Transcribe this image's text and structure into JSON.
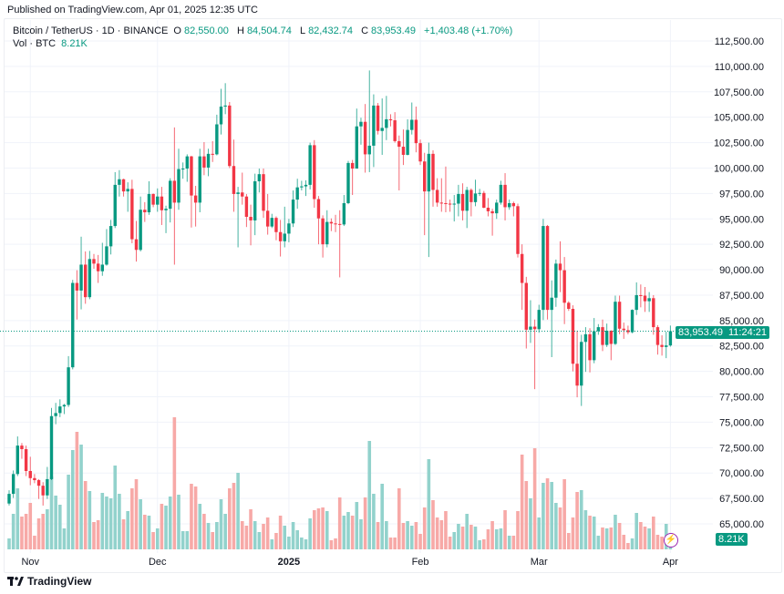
{
  "published": "Published on TradingView.com, Apr 01, 2025 12:35 UTC",
  "legend": {
    "symbol": "Bitcoin / TetherUS · 1D · BINANCE",
    "o_label": "O",
    "o": "82,550.00",
    "h_label": "H",
    "h": "84,504.74",
    "l_label": "L",
    "l": "82,432.74",
    "c_label": "C",
    "c": "83,953.49",
    "change": "+1,403.48 (+1.70%)",
    "vol_label": "Vol · BTC",
    "vol": "8.21K"
  },
  "price_tag": {
    "price": "83,953.49",
    "countdown": "11:24:21"
  },
  "vol_tag": "8.21K",
  "logo_text": "TradingView",
  "colors": {
    "up": "#089981",
    "down": "#F23645",
    "up_vol": "#92d2cc",
    "down_vol": "#f7a9a7",
    "grid": "#f0f3fa",
    "accent_icon": "#9c27b0"
  },
  "chart_data": {
    "type": "candlestick",
    "title": "",
    "xlabel": "",
    "ylabel": "",
    "ylim": [
      63000,
      113500
    ],
    "y_ticks": [
      "112,500.00",
      "110,000.00",
      "107,500.00",
      "105,000.00",
      "102,500.00",
      "100,000.00",
      "97,500.00",
      "95,000.00",
      "92,500.00",
      "90,000.00",
      "87,500.00",
      "85,000.00",
      "82,500.00",
      "80,000.00",
      "77,500.00",
      "75,000.00",
      "72,500.00",
      "70,000.00",
      "67,500.00",
      "65,000.00"
    ],
    "x_ticks": [
      {
        "label": "Nov",
        "date": "2024-11-01",
        "bold": false
      },
      {
        "label": "Dec",
        "date": "2024-12-01",
        "bold": false
      },
      {
        "label": "2025",
        "date": "2025-01-01",
        "bold": true
      },
      {
        "label": "Feb",
        "date": "2025-02-01",
        "bold": false
      },
      {
        "label": "Mar",
        "date": "2025-03-01",
        "bold": false
      },
      {
        "label": "Apr",
        "date": "2025-04-01",
        "bold": false
      }
    ],
    "grid": true,
    "columns": [
      "date",
      "open",
      "high",
      "low",
      "close",
      "volume_k"
    ],
    "rows": [
      [
        "2024-10-27",
        67000,
        68300,
        66800,
        67950,
        7.2
      ],
      [
        "2024-10-28",
        67950,
        70250,
        67550,
        69900,
        23.4
      ],
      [
        "2024-10-29",
        69900,
        73600,
        69700,
        72700,
        40.2
      ],
      [
        "2024-10-30",
        72700,
        72950,
        71400,
        72350,
        21.6
      ],
      [
        "2024-10-31",
        72350,
        72700,
        69700,
        70200,
        23.4
      ],
      [
        "2024-11-01",
        70200,
        71600,
        68800,
        69500,
        30.6
      ],
      [
        "2024-11-02",
        69500,
        69900,
        69000,
        69300,
        9.0
      ],
      [
        "2024-11-03",
        69300,
        69400,
        67450,
        68750,
        20.4
      ],
      [
        "2024-11-04",
        68750,
        69100,
        66800,
        67800,
        23.4
      ],
      [
        "2024-11-05",
        67800,
        70600,
        67450,
        69400,
        26.4
      ],
      [
        "2024-11-06",
        69400,
        76400,
        69300,
        75600,
        48.0
      ],
      [
        "2024-11-07",
        75600,
        76900,
        74800,
        75900,
        35.4
      ],
      [
        "2024-11-08",
        75900,
        77250,
        75500,
        76550,
        29.4
      ],
      [
        "2024-11-09",
        76550,
        76800,
        75800,
        76700,
        13.8
      ],
      [
        "2024-11-10",
        76700,
        81500,
        76500,
        80400,
        49.2
      ],
      [
        "2024-11-11",
        80400,
        89000,
        80200,
        88700,
        65.4
      ],
      [
        "2024-11-12",
        88700,
        89950,
        85100,
        87950,
        77.4
      ],
      [
        "2024-11-13",
        87950,
        93250,
        86100,
        90500,
        69.0
      ],
      [
        "2024-11-14",
        90500,
        91800,
        86650,
        87300,
        45.0
      ],
      [
        "2024-11-15",
        87300,
        91850,
        87100,
        91050,
        38.4
      ],
      [
        "2024-11-16",
        91050,
        91550,
        90100,
        90600,
        18.0
      ],
      [
        "2024-11-17",
        90600,
        91450,
        88700,
        89850,
        19.2
      ],
      [
        "2024-11-18",
        89850,
        92650,
        89400,
        90500,
        37.2
      ],
      [
        "2024-11-19",
        90500,
        94000,
        90400,
        92300,
        34.8
      ],
      [
        "2024-11-20",
        92300,
        94900,
        91500,
        94300,
        33.6
      ],
      [
        "2024-11-21",
        94300,
        99600,
        94100,
        98350,
        55.2
      ],
      [
        "2024-11-22",
        98350,
        99800,
        97200,
        98900,
        36.6
      ],
      [
        "2024-11-23",
        98900,
        98950,
        97200,
        97700,
        19.8
      ],
      [
        "2024-11-24",
        97700,
        98600,
        95700,
        97950,
        25.2
      ],
      [
        "2024-11-25",
        97950,
        98850,
        92600,
        93000,
        40.2
      ],
      [
        "2024-11-26",
        93000,
        94800,
        90800,
        91950,
        46.2
      ],
      [
        "2024-11-27",
        91950,
        97200,
        91800,
        95900,
        33.0
      ],
      [
        "2024-11-28",
        95900,
        96650,
        94700,
        95650,
        22.8
      ],
      [
        "2024-11-29",
        95650,
        98700,
        95400,
        97450,
        22.2
      ],
      [
        "2024-11-30",
        97450,
        97500,
        96150,
        96400,
        11.4
      ],
      [
        "2024-12-01",
        96400,
        98000,
        95700,
        97200,
        13.8
      ],
      [
        "2024-12-02",
        97200,
        98150,
        94400,
        95850,
        30.0
      ],
      [
        "2024-12-03",
        95850,
        96300,
        93600,
        96000,
        28.8
      ],
      [
        "2024-12-04",
        96000,
        99000,
        94650,
        98750,
        34.8
      ],
      [
        "2024-12-05",
        98750,
        104000,
        90500,
        96600,
        87.0
      ],
      [
        "2024-12-06",
        96600,
        101900,
        95900,
        99900,
        36.0
      ],
      [
        "2024-12-07",
        99900,
        100550,
        98950,
        99950,
        12.0
      ],
      [
        "2024-12-08",
        99950,
        101350,
        98650,
        101150,
        12.0
      ],
      [
        "2024-12-09",
        101150,
        101200,
        94150,
        97300,
        43.2
      ],
      [
        "2024-12-10",
        97300,
        98250,
        94250,
        96600,
        41.4
      ],
      [
        "2024-12-11",
        96600,
        101900,
        95650,
        101150,
        30.0
      ],
      [
        "2024-12-12",
        101150,
        102550,
        99300,
        100050,
        23.4
      ],
      [
        "2024-12-13",
        100050,
        101900,
        99200,
        101400,
        17.4
      ],
      [
        "2024-12-14",
        101400,
        102650,
        100600,
        101350,
        11.4
      ],
      [
        "2024-12-15",
        101350,
        105250,
        101250,
        104300,
        18.0
      ],
      [
        "2024-12-16",
        104300,
        107800,
        103300,
        106050,
        33.0
      ],
      [
        "2024-12-17",
        106050,
        108350,
        105300,
        106150,
        23.4
      ],
      [
        "2024-12-18",
        106150,
        106500,
        100000,
        100200,
        40.2
      ],
      [
        "2024-12-19",
        100200,
        102800,
        95700,
        97450,
        43.8
      ],
      [
        "2024-12-20",
        97450,
        98150,
        92200,
        97600,
        50.4
      ],
      [
        "2024-12-21",
        97600,
        99550,
        96400,
        97200,
        18.6
      ],
      [
        "2024-12-22",
        97200,
        97450,
        94200,
        95200,
        15.6
      ],
      [
        "2024-12-23",
        95200,
        96400,
        92400,
        94850,
        26.4
      ],
      [
        "2024-12-24",
        94850,
        99450,
        93400,
        98700,
        18.6
      ],
      [
        "2024-12-25",
        98700,
        99950,
        97600,
        99400,
        11.4
      ],
      [
        "2024-12-26",
        99400,
        99950,
        95100,
        95800,
        16.8
      ],
      [
        "2024-12-27",
        95800,
        97450,
        93450,
        94250,
        21.0
      ],
      [
        "2024-12-28",
        94250,
        95500,
        94100,
        95100,
        6.6
      ],
      [
        "2024-12-29",
        95100,
        95250,
        92900,
        93700,
        10.8
      ],
      [
        "2024-12-30",
        93700,
        94900,
        91300,
        92800,
        22.2
      ],
      [
        "2024-12-31",
        92800,
        96200,
        92200,
        93550,
        15.6
      ],
      [
        "2025-01-01",
        93550,
        95000,
        92700,
        94550,
        8.4
      ],
      [
        "2025-01-02",
        94550,
        97800,
        94200,
        96900,
        18.0
      ],
      [
        "2025-01-03",
        96900,
        98950,
        96000,
        98100,
        12.6
      ],
      [
        "2025-01-04",
        98100,
        98750,
        97800,
        98200,
        7.8
      ],
      [
        "2025-01-05",
        98200,
        98800,
        97250,
        98350,
        6.6
      ],
      [
        "2025-01-06",
        98350,
        102500,
        97900,
        102250,
        20.4
      ],
      [
        "2025-01-07",
        102250,
        102750,
        96100,
        96950,
        25.8
      ],
      [
        "2025-01-08",
        96950,
        97250,
        92500,
        95050,
        27.0
      ],
      [
        "2025-01-09",
        95050,
        95350,
        91200,
        92500,
        27.6
      ],
      [
        "2025-01-10",
        92500,
        95850,
        92200,
        94700,
        25.2
      ],
      [
        "2025-01-11",
        94700,
        95050,
        93800,
        94550,
        6.0
      ],
      [
        "2025-01-12",
        94550,
        95400,
        93700,
        94500,
        7.2
      ],
      [
        "2025-01-13",
        94500,
        95850,
        89250,
        94450,
        34.2
      ],
      [
        "2025-01-14",
        94450,
        97350,
        94300,
        96550,
        22.2
      ],
      [
        "2025-01-15",
        96550,
        100700,
        96450,
        100500,
        24.6
      ],
      [
        "2025-01-16",
        100500,
        100800,
        97350,
        99950,
        22.2
      ],
      [
        "2025-01-17",
        99950,
        105850,
        99950,
        104100,
        31.2
      ],
      [
        "2025-01-18",
        104100,
        104950,
        102300,
        104550,
        19.8
      ],
      [
        "2025-01-19",
        104550,
        106300,
        99550,
        101350,
        34.2
      ],
      [
        "2025-01-20",
        101350,
        109600,
        99600,
        102200,
        71.4
      ],
      [
        "2025-01-21",
        102200,
        107250,
        100100,
        106150,
        36.6
      ],
      [
        "2025-01-22",
        106150,
        106400,
        103300,
        103650,
        18.0
      ],
      [
        "2025-01-23",
        103650,
        106850,
        101300,
        103950,
        43.2
      ],
      [
        "2025-01-24",
        103950,
        107100,
        102750,
        104800,
        18.6
      ],
      [
        "2025-01-25",
        104800,
        105300,
        104100,
        104700,
        7.8
      ],
      [
        "2025-01-26",
        104700,
        105500,
        102500,
        102650,
        7.8
      ],
      [
        "2025-01-27",
        102650,
        103200,
        97800,
        102100,
        40.2
      ],
      [
        "2025-01-28",
        102100,
        103800,
        100300,
        101300,
        17.4
      ],
      [
        "2025-01-29",
        101300,
        104800,
        101250,
        103750,
        18.6
      ],
      [
        "2025-01-30",
        103750,
        106450,
        103300,
        104750,
        15.6
      ],
      [
        "2025-01-31",
        104750,
        106050,
        101550,
        102450,
        18.0
      ],
      [
        "2025-02-01",
        102450,
        102800,
        100300,
        100650,
        10.2
      ],
      [
        "2025-02-02",
        100650,
        101500,
        93400,
        97700,
        27.6
      ],
      [
        "2025-02-03",
        97700,
        102500,
        91250,
        101400,
        59.4
      ],
      [
        "2025-02-04",
        101400,
        101750,
        96200,
        97850,
        32.4
      ],
      [
        "2025-02-05",
        97850,
        99000,
        96200,
        96600,
        21.0
      ],
      [
        "2025-02-06",
        96600,
        99000,
        95700,
        96550,
        19.2
      ],
      [
        "2025-02-07",
        96550,
        100150,
        95650,
        96500,
        25.2
      ],
      [
        "2025-02-08",
        96500,
        96900,
        95700,
        96450,
        8.4
      ],
      [
        "2025-02-09",
        96450,
        97350,
        94750,
        96500,
        11.4
      ],
      [
        "2025-02-10",
        96500,
        98350,
        95250,
        97450,
        16.8
      ],
      [
        "2025-02-11",
        97450,
        98500,
        94850,
        95800,
        15.0
      ],
      [
        "2025-02-12",
        95800,
        98150,
        94100,
        97850,
        23.4
      ],
      [
        "2025-02-13",
        97850,
        98000,
        95250,
        96650,
        16.2
      ],
      [
        "2025-02-14",
        96650,
        98850,
        96250,
        97500,
        15.0
      ],
      [
        "2025-02-15",
        97500,
        97950,
        97250,
        97550,
        6.0
      ],
      [
        "2025-02-16",
        97550,
        97750,
        96050,
        96100,
        6.6
      ],
      [
        "2025-02-17",
        96100,
        97050,
        95250,
        95750,
        13.2
      ],
      [
        "2025-02-18",
        95750,
        96000,
        93350,
        95550,
        18.6
      ],
      [
        "2025-02-19",
        95550,
        96900,
        95000,
        96600,
        13.2
      ],
      [
        "2025-02-20",
        96600,
        98750,
        96400,
        98350,
        13.8
      ],
      [
        "2025-02-21",
        98350,
        99500,
        94850,
        96150,
        25.8
      ],
      [
        "2025-02-22",
        96150,
        96900,
        95900,
        96550,
        9.0
      ],
      [
        "2025-02-23",
        96550,
        96700,
        95250,
        96250,
        9.0
      ],
      [
        "2025-02-24",
        96250,
        96500,
        91200,
        91550,
        25.2
      ],
      [
        "2025-02-25",
        91550,
        92500,
        86050,
        88700,
        62.4
      ],
      [
        "2025-02-26",
        88700,
        89300,
        82250,
        84100,
        45.0
      ],
      [
        "2025-02-27",
        84100,
        87000,
        82800,
        84400,
        33.6
      ],
      [
        "2025-02-28",
        84400,
        85100,
        78250,
        84150,
        66.6
      ],
      [
        "2025-03-01",
        84150,
        86550,
        83800,
        86050,
        21.0
      ],
      [
        "2025-03-02",
        86050,
        95000,
        85050,
        94300,
        43.8
      ],
      [
        "2025-03-03",
        94300,
        94400,
        85100,
        86050,
        46.8
      ],
      [
        "2025-03-04",
        86050,
        88950,
        81400,
        87250,
        44.4
      ],
      [
        "2025-03-05",
        87250,
        91000,
        86350,
        90600,
        30.6
      ],
      [
        "2025-03-06",
        90600,
        92800,
        87800,
        89950,
        27.6
      ],
      [
        "2025-03-07",
        89950,
        91250,
        84650,
        86750,
        46.2
      ],
      [
        "2025-03-08",
        86750,
        86900,
        85950,
        86150,
        10.8
      ],
      [
        "2025-03-09",
        86150,
        86500,
        80000,
        80750,
        21.0
      ],
      [
        "2025-03-10",
        80750,
        84000,
        77450,
        78600,
        37.8
      ],
      [
        "2025-03-11",
        78600,
        83600,
        76600,
        82900,
        39.0
      ],
      [
        "2025-03-12",
        82900,
        84350,
        79950,
        83650,
        25.8
      ],
      [
        "2025-03-13",
        83650,
        84250,
        79900,
        81100,
        22.2
      ],
      [
        "2025-03-14",
        81100,
        85250,
        80800,
        83950,
        21.6
      ],
      [
        "2025-03-15",
        83950,
        84650,
        83600,
        84350,
        9.0
      ],
      [
        "2025-03-16",
        84350,
        85100,
        82000,
        82600,
        14.4
      ],
      [
        "2025-03-17",
        82600,
        84700,
        82400,
        84000,
        13.8
      ],
      [
        "2025-03-18",
        84000,
        84050,
        81100,
        82700,
        14.4
      ],
      [
        "2025-03-19",
        82700,
        87450,
        82600,
        86850,
        22.8
      ],
      [
        "2025-03-20",
        86850,
        87450,
        83650,
        84200,
        17.4
      ],
      [
        "2025-03-21",
        84200,
        84800,
        83200,
        84050,
        9.6
      ],
      [
        "2025-03-22",
        84050,
        84500,
        83650,
        83850,
        4.2
      ],
      [
        "2025-03-23",
        83850,
        86100,
        83750,
        86050,
        7.2
      ],
      [
        "2025-03-24",
        86050,
        88750,
        85550,
        87500,
        24.0
      ],
      [
        "2025-03-25",
        87500,
        88550,
        86300,
        87450,
        18.0
      ],
      [
        "2025-03-26",
        87450,
        88300,
        85850,
        86900,
        15.0
      ],
      [
        "2025-03-27",
        86900,
        87800,
        85850,
        87200,
        13.8
      ],
      [
        "2025-03-28",
        87200,
        87500,
        83600,
        84350,
        21.6
      ],
      [
        "2025-03-29",
        84350,
        84550,
        81650,
        82600,
        9.6
      ],
      [
        "2025-03-30",
        82600,
        83550,
        81550,
        82400,
        8.4
      ],
      [
        "2025-03-31",
        82400,
        83900,
        81300,
        82550,
        16.8
      ],
      [
        "2025-04-01",
        82550,
        84504.74,
        82432.74,
        83953.49,
        8.21
      ]
    ]
  }
}
